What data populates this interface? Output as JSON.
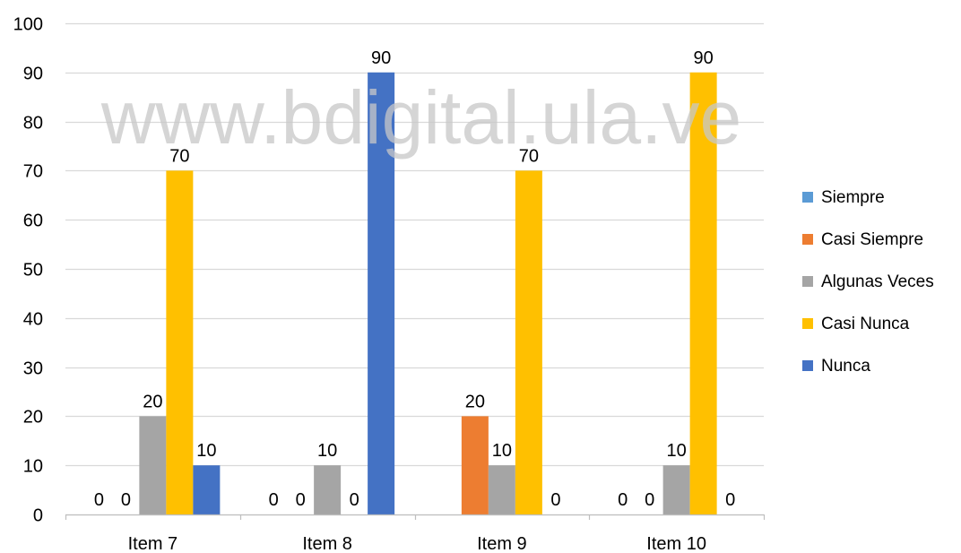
{
  "watermark": "www.bdigital.ula.ve",
  "chart_data": {
    "type": "bar",
    "categories": [
      "Item 7",
      "Item 8",
      "Item 9",
      "Item 10"
    ],
    "series": [
      {
        "name": "Siempre",
        "color": "#5B9BD5",
        "values": [
          0,
          0,
          0,
          0
        ],
        "labels": [
          "0",
          "0",
          "",
          "0"
        ]
      },
      {
        "name": "Casi Siempre",
        "color": "#ED7D31",
        "values": [
          0,
          0,
          20,
          0
        ],
        "labels": [
          "0",
          "0",
          "20",
          "0"
        ]
      },
      {
        "name": "Algunas Veces",
        "color": "#A5A5A5",
        "values": [
          20,
          10,
          10,
          10
        ],
        "labels": [
          "20",
          "10",
          "10",
          "10"
        ]
      },
      {
        "name": "Casi Nunca",
        "color": "#FFC000",
        "values": [
          70,
          0,
          70,
          90
        ],
        "labels": [
          "70",
          "0",
          "70",
          "90"
        ]
      },
      {
        "name": "Nunca",
        "color": "#4472C4",
        "values": [
          10,
          90,
          0,
          0
        ],
        "labels": [
          "10",
          "90",
          "0",
          "0"
        ]
      }
    ],
    "ylim": [
      0,
      100
    ],
    "yticks": [
      0,
      10,
      20,
      30,
      40,
      50,
      60,
      70,
      80,
      90,
      100
    ],
    "grid": true,
    "legend_position": "right"
  }
}
